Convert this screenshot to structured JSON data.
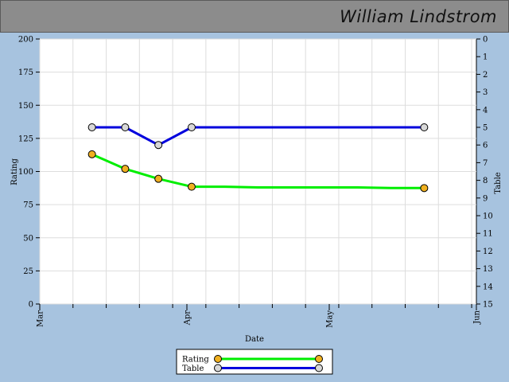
{
  "header": {
    "title": "William Lindstrom"
  },
  "chart_data": {
    "type": "line",
    "xlabel": "Date",
    "x_ticks": [
      "Mar",
      "Apr",
      "May",
      "Jun"
    ],
    "ylabel_left": "Rating",
    "ylim_left": [
      0,
      200
    ],
    "yticks_left": [
      0,
      25,
      50,
      75,
      100,
      125,
      150,
      175,
      200
    ],
    "ylabel_right": "Table",
    "ylim_right": [
      0,
      15
    ],
    "right_axis_inverted": true,
    "yticks_right": [
      0,
      1,
      2,
      3,
      4,
      5,
      6,
      7,
      8,
      9,
      10,
      11,
      12,
      13,
      14,
      15
    ],
    "grid": true,
    "legend": "bottom-center",
    "series": [
      {
        "name": "Rating",
        "axis": "left",
        "line_color": "#00ee00",
        "marker_color": "#f0b020",
        "points": [
          {
            "x": "2007-03-12",
            "y": 113
          },
          {
            "x": "2007-03-19",
            "y": 102
          },
          {
            "x": "2007-03-26",
            "y": 94.5
          },
          {
            "x": "2007-04-02",
            "y": 88.5
          },
          {
            "x": "2007-04-09",
            "y": 88.5
          },
          {
            "x": "2007-04-16",
            "y": 88
          },
          {
            "x": "2007-04-23",
            "y": 88
          },
          {
            "x": "2007-04-30",
            "y": 88
          },
          {
            "x": "2007-05-07",
            "y": 88
          },
          {
            "x": "2007-05-14",
            "y": 87.5
          },
          {
            "x": "2007-05-21",
            "y": 87.5
          }
        ],
        "markers_at": [
          "2007-03-12",
          "2007-03-19",
          "2007-03-26",
          "2007-04-02",
          "2007-05-21"
        ]
      },
      {
        "name": "Table",
        "axis": "right",
        "line_color": "#0000dd",
        "marker_color": "#d8d8d8",
        "points": [
          {
            "x": "2007-03-12",
            "y": 5
          },
          {
            "x": "2007-03-19",
            "y": 5
          },
          {
            "x": "2007-03-26",
            "y": 6
          },
          {
            "x": "2007-04-02",
            "y": 5
          },
          {
            "x": "2007-05-21",
            "y": 5
          }
        ],
        "markers_at": [
          "2007-03-12",
          "2007-03-19",
          "2007-03-26",
          "2007-04-02",
          "2007-05-21"
        ]
      }
    ]
  }
}
